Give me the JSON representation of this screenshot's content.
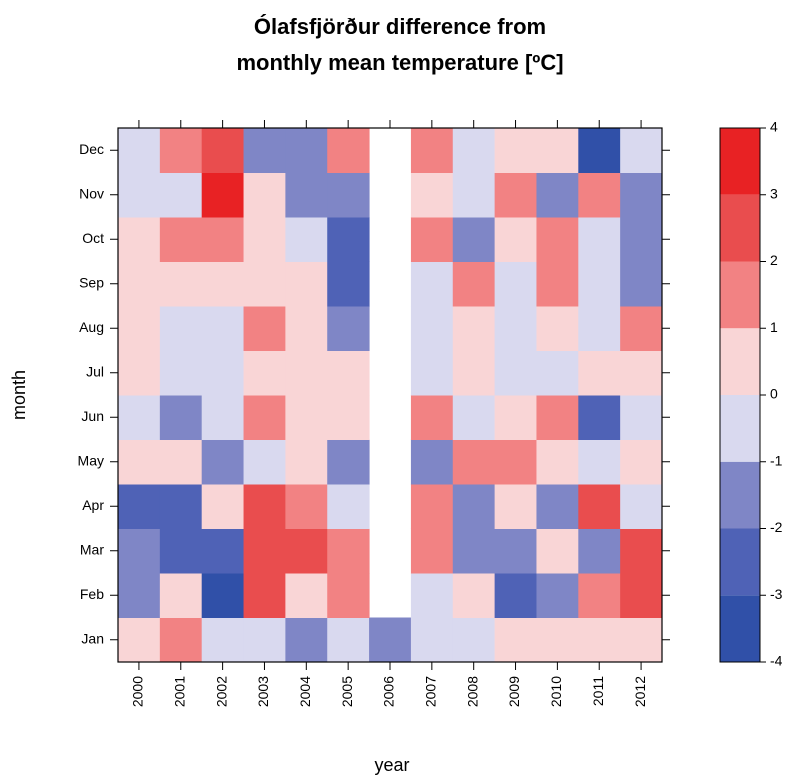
{
  "chart_data": {
    "type": "heatmap",
    "title": [
      "Ólafsfjörður difference from",
      "monthly mean temperature [ºC]"
    ],
    "xlabel": "year",
    "ylabel": "month",
    "x": [
      "2000",
      "2001",
      "2002",
      "2003",
      "2004",
      "2005",
      "2006",
      "2007",
      "2008",
      "2009",
      "2010",
      "2011",
      "2012"
    ],
    "y": [
      "Jan",
      "Feb",
      "Mar",
      "Apr",
      "May",
      "Jun",
      "Jul",
      "Aug",
      "Sep",
      "Oct",
      "Nov",
      "Dec"
    ],
    "values": [
      [
        0.5,
        1.5,
        -0.5,
        -0.5,
        -1.5,
        -0.5,
        -1.5,
        -0.5,
        -0.5,
        0.5,
        0.5,
        0.5,
        0.5
      ],
      [
        -1.5,
        0.5,
        -3.5,
        2.5,
        0.5,
        1.5,
        null,
        -0.5,
        0.5,
        -2.5,
        -1.5,
        1.5,
        2.5
      ],
      [
        -1.5,
        -2.5,
        -2.5,
        2.5,
        2.5,
        1.5,
        null,
        1.5,
        -1.5,
        -1.5,
        0.5,
        -1.5,
        2.5
      ],
      [
        -2.5,
        -2.5,
        0.5,
        2.5,
        1.5,
        -0.5,
        null,
        1.5,
        -1.5,
        0.5,
        -1.5,
        2.5,
        -0.5
      ],
      [
        0.5,
        0.5,
        -1.5,
        -0.5,
        0.5,
        -1.5,
        null,
        -1.5,
        1.5,
        1.5,
        0.5,
        -0.5,
        0.5
      ],
      [
        -0.5,
        -1.5,
        -0.5,
        1.5,
        0.5,
        0.5,
        null,
        1.5,
        -0.5,
        0.5,
        1.5,
        -2.5,
        -0.5
      ],
      [
        0.5,
        -0.5,
        -0.5,
        0.5,
        0.5,
        0.5,
        null,
        -0.5,
        0.5,
        -0.5,
        -0.5,
        0.5,
        0.5
      ],
      [
        0.5,
        -0.5,
        -0.5,
        1.5,
        0.5,
        -1.5,
        null,
        -0.5,
        0.5,
        -0.5,
        0.5,
        -0.5,
        1.5
      ],
      [
        0.5,
        0.5,
        0.5,
        0.5,
        0.5,
        -2.5,
        null,
        -0.5,
        1.5,
        -0.5,
        1.5,
        -0.5,
        -1.5
      ],
      [
        0.5,
        1.5,
        1.5,
        0.5,
        -0.5,
        -2.5,
        null,
        1.5,
        -1.5,
        0.5,
        1.5,
        -0.5,
        -1.5
      ],
      [
        -0.5,
        -0.5,
        3.5,
        0.5,
        -1.5,
        -1.5,
        null,
        0.5,
        -0.5,
        1.5,
        -1.5,
        1.5,
        -1.5
      ],
      [
        -0.5,
        1.5,
        2.5,
        -1.5,
        -1.5,
        1.5,
        null,
        1.5,
        -0.5,
        0.5,
        0.5,
        -3.5,
        -0.5
      ]
    ],
    "zlim": [
      -4,
      4
    ],
    "zticks": [
      -4,
      -3,
      -2,
      -1,
      0,
      1,
      2,
      3,
      4
    ],
    "colors": [
      "#3050A8",
      "#4F62B6",
      "#7F86C6",
      "#D9D9EF",
      "#F9D5D6",
      "#F28283",
      "#E94D4E",
      "#E82224"
    ]
  }
}
